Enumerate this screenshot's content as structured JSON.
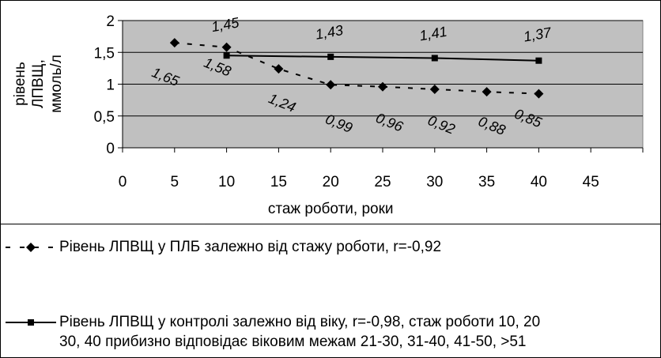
{
  "chart_data": {
    "type": "line",
    "title": "",
    "xlabel": "стаж роботи, роки",
    "ylabel_lines": [
      "рівень",
      "ЛПВЩ,",
      "ммоль/л"
    ],
    "xlim": [
      0,
      50
    ],
    "ylim": [
      0,
      2
    ],
    "x_ticks": [
      "0",
      "5",
      "10",
      "15",
      "20",
      "25",
      "30",
      "35",
      "40",
      "45"
    ],
    "y_ticks": [
      "0",
      "0,5",
      "1",
      "1,5",
      "2"
    ],
    "grid": "horizontal",
    "plot_background": "#c0c0c0",
    "series": [
      {
        "name": "Рівень ЛПВЩ у ПЛБ залежно від стажу роботи, r=-0,92",
        "style": "dashed",
        "marker": "diamond",
        "x": [
          5,
          10,
          15,
          20,
          25,
          30,
          35,
          40
        ],
        "values": [
          1.65,
          1.58,
          1.24,
          0.99,
          0.96,
          0.92,
          0.88,
          0.85
        ],
        "labels": [
          "1,65",
          "1,58",
          "1,24",
          "0,99",
          "0,96",
          "0,92",
          "0,88",
          "0,85"
        ]
      },
      {
        "name": "Рівень ЛПВЩ у контролі залежно від віку, r=-0,98, стаж роботи 10, 20 30, 40 прибизно відповідає віковим межам 21-30, 31-40, 41-50, >51",
        "style": "solid",
        "marker": "square",
        "x": [
          10,
          20,
          30,
          40
        ],
        "values": [
          1.45,
          1.43,
          1.41,
          1.37
        ],
        "labels": [
          "1,45",
          "1,43",
          "1,41",
          "1,37"
        ]
      }
    ],
    "legend_position": "bottom"
  },
  "legend": {
    "entry1": "Рівень ЛПВЩ у ПЛБ залежно від стажу роботи, r=-0,92",
    "entry2_line1": "Рівень ЛПВЩ у контролі залежно від віку, r=-0,98, стаж роботи 10, 20",
    "entry2_line2": "30, 40 прибизно відповідає віковим межам 21-30, 31-40, 41-50, >51"
  }
}
